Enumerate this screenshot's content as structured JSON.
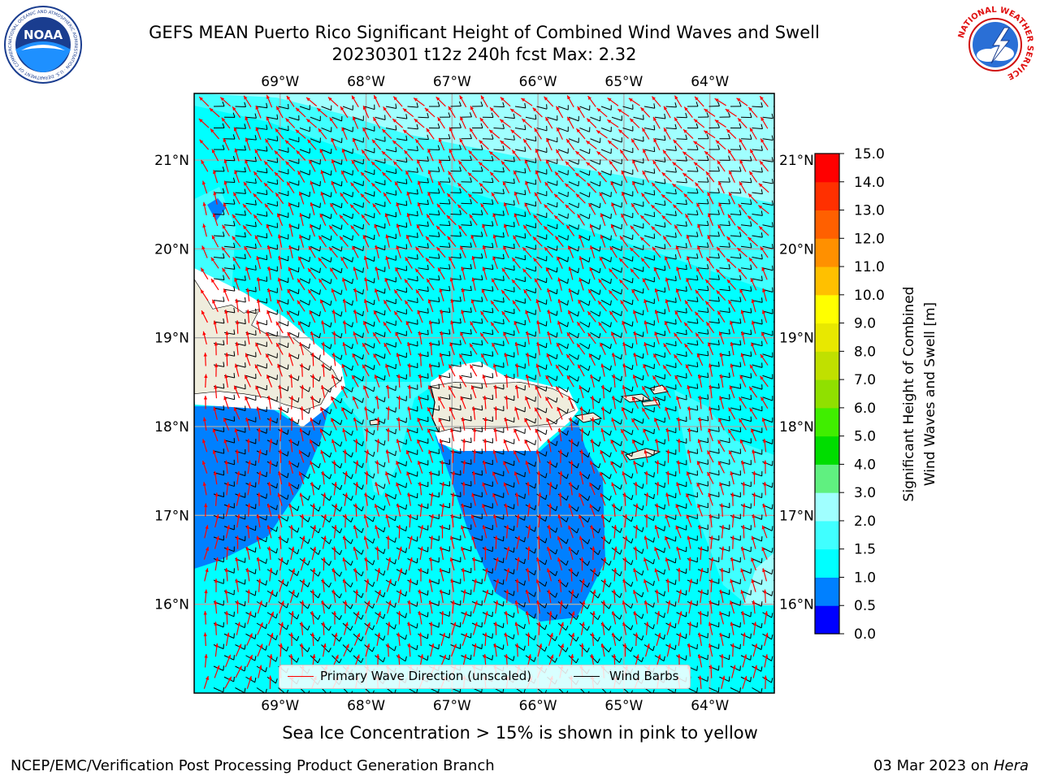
{
  "header": {
    "title_line1": "GEFS MEAN Puerto Rico Significant Height of Combined Wind Waves and Swell",
    "title_line2": "20230301 t12z 240h fcst   Max: 2.32",
    "noaa_logo_text": "NOAA",
    "noaa_ring_text": "NATIONAL OCEANIC AND ATMOSPHERIC ADMINISTRATION · U.S. DEPARTMENT OF COMMERCE",
    "nws_ring_text": "NATIONAL WEATHER SERVICE"
  },
  "map": {
    "lon_labels": [
      "69°W",
      "68°W",
      "67°W",
      "66°W",
      "65°W",
      "64°W"
    ],
    "lat_labels": [
      "21°N",
      "20°N",
      "19°N",
      "18°N",
      "17°N",
      "16°N"
    ],
    "lon_values": [
      -69,
      -68,
      -67,
      -66,
      -65,
      -64
    ],
    "lat_values": [
      21,
      20,
      19,
      18,
      17,
      16
    ],
    "extent": {
      "lon_min": -70.0,
      "lon_max": -63.25,
      "lat_min": 15.0,
      "lat_max": 21.75
    },
    "land_color": "#efeddd",
    "wave_arrow_color": "#ff0000",
    "wind_barb_color": "#000000",
    "gridlines": true
  },
  "legend": {
    "wave_label": "Primary Wave Direction (unscaled)",
    "barb_label": "Wind Barbs"
  },
  "colorbar": {
    "label_line1": "Significant Height of Combined",
    "label_line2": "Wind Waves and Swell [m]",
    "ticks": [
      "0.0",
      "0.5",
      "1.0",
      "1.5",
      "2.0",
      "3.0",
      "4.0",
      "5.0",
      "6.0",
      "7.0",
      "8.0",
      "9.0",
      "10.0",
      "11.0",
      "12.0",
      "13.0",
      "14.0",
      "15.0"
    ],
    "colors": [
      "#0000ff",
      "#0080ff",
      "#00ffff",
      "#40ffff",
      "#a0ffff",
      "#60f080",
      "#00dd00",
      "#40ee00",
      "#90e000",
      "#c0e000",
      "#e8e800",
      "#ffff00",
      "#ffc000",
      "#ff9000",
      "#ff6000",
      "#ff3000",
      "#ff0000"
    ]
  },
  "caption": "Sea Ice Concentration > 15% is shown in pink to yellow",
  "footer": {
    "left": "NCEP/EMC/Verification Post Processing Product Generation Branch",
    "right_date": "03 Mar 2023 on ",
    "right_host": "Hera"
  }
}
